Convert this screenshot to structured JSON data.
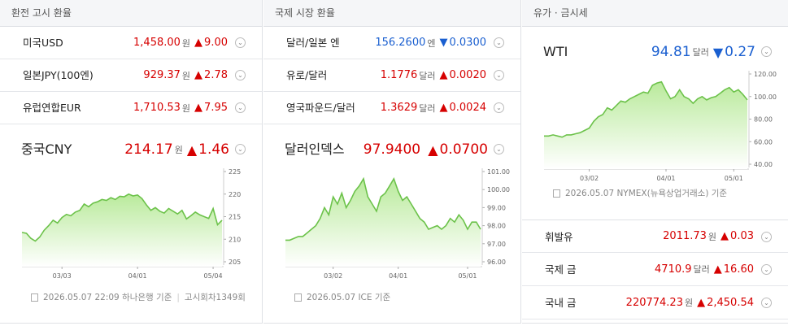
{
  "sections": [
    {
      "title": "환전 고시 환율",
      "rows": [
        {
          "name": "미국USD",
          "value": "1,458.00",
          "unit": "원",
          "arrow": "▲",
          "change": "9.00",
          "color": "#d60000"
        },
        {
          "name": "일본JPY(100엔)",
          "value": "929.37",
          "unit": "원",
          "arrow": "▲",
          "change": "2.78",
          "color": "#d60000"
        },
        {
          "name": "유럽연합EUR",
          "value": "1,710.53",
          "unit": "원",
          "arrow": "▲",
          "change": "7.95",
          "color": "#d60000"
        }
      ],
      "featured": {
        "name": "중국CNY",
        "value": "214.17",
        "unit": "원",
        "arrow": "▲",
        "change": "1.46",
        "color": "#d60000",
        "source": "2026.05.07 22:09 하나은행 기준",
        "extra": "고시회차1349회",
        "chart": {
          "type": "line",
          "line_color": "#6cc24a",
          "values": [
            211.5,
            211.3,
            210.2,
            209.6,
            210.5,
            212,
            213,
            214.2,
            213.6,
            214.8,
            215.5,
            215.2,
            216,
            216.4,
            217.8,
            217.2,
            218,
            218.3,
            218.8,
            218.6,
            219.2,
            218.8,
            219.5,
            219.4,
            220,
            219.6,
            219.8,
            219,
            217.6,
            216.4,
            217,
            216.2,
            215.8,
            216.8,
            216.2,
            215.6,
            216.4,
            214.5,
            215.2,
            216,
            215.4,
            215,
            214.6,
            216.8,
            213.2,
            214.2
          ],
          "categories": [
            null,
            null,
            null,
            null,
            null,
            null,
            null,
            null,
            null,
            "03/03",
            null,
            null,
            null,
            null,
            null,
            null,
            null,
            null,
            null,
            null,
            null,
            null,
            null,
            null,
            null,
            null,
            "04/01",
            null,
            null,
            null,
            null,
            null,
            null,
            null,
            null,
            null,
            null,
            null,
            null,
            null,
            null,
            null,
            null,
            "05/04",
            null,
            null
          ],
          "ylim": [
            205,
            225
          ],
          "yticks": [
            205,
            210,
            215,
            220,
            225
          ]
        }
      }
    },
    {
      "title": "국제 시장 환율",
      "rows": [
        {
          "name": "달러/일본 엔",
          "value": "156.2600",
          "unit": "엔",
          "arrow": "▼",
          "change": "0.0300",
          "color": "#1a5fd0"
        },
        {
          "name": "유로/달러",
          "value": "1.1776",
          "unit": "달러",
          "arrow": "▲",
          "change": "0.0020",
          "color": "#d60000"
        },
        {
          "name": "영국파운드/달러",
          "value": "1.3629",
          "unit": "달러",
          "arrow": "▲",
          "change": "0.0024",
          "color": "#d60000"
        }
      ],
      "featured": {
        "name": "달러인덱스",
        "value": "97.9400",
        "unit": null,
        "arrow": "▲",
        "change": "0.0700",
        "color": "#d60000",
        "source": "2026.05.07 ICE 기준",
        "extra": null,
        "chart": {
          "type": "line",
          "line_color": "#6cc24a",
          "values": [
            97.2,
            97.2,
            97.3,
            97.4,
            97.4,
            97.6,
            97.8,
            98.0,
            98.4,
            99.0,
            98.6,
            99.6,
            99.2,
            99.8,
            99.0,
            99.4,
            99.9,
            100.2,
            100.6,
            99.6,
            99.2,
            98.8,
            99.6,
            99.8,
            100.2,
            100.6,
            99.9,
            99.4,
            99.6,
            99.2,
            98.8,
            98.4,
            98.2,
            97.8,
            97.9,
            98.0,
            97.8,
            98.0,
            98.4,
            98.2,
            98.6,
            98.3,
            97.8,
            98.2,
            98.2,
            97.8
          ],
          "categories": [
            null,
            null,
            null,
            null,
            null,
            null,
            null,
            null,
            null,
            null,
            null,
            "03/02",
            null,
            null,
            null,
            null,
            null,
            null,
            null,
            null,
            null,
            null,
            null,
            null,
            null,
            null,
            "04/01",
            null,
            null,
            null,
            null,
            null,
            null,
            null,
            null,
            null,
            null,
            null,
            null,
            null,
            null,
            null,
            "05/01",
            null,
            null,
            null
          ],
          "ylim": [
            96,
            101
          ],
          "yticks": [
            {
              "value": 96,
              "label": "96.00"
            },
            {
              "value": 97,
              "label": "97.00"
            },
            {
              "value": 98,
              "label": "98.00"
            },
            {
              "value": 99,
              "label": "99.00"
            },
            {
              "value": 100,
              "label": "100.00"
            },
            {
              "value": 101,
              "label": "101.00"
            }
          ]
        }
      }
    },
    {
      "title": "유가 · 금시세",
      "rows": [
        {
          "name": "휘발유",
          "value": "2011.73",
          "unit": "원",
          "arrow": "▲",
          "change": "0.03",
          "color": "#d60000"
        },
        {
          "name": "국제 금",
          "value": "4710.9",
          "unit": "달러",
          "arrow": "▲",
          "change": "16.60",
          "color": "#d60000"
        },
        {
          "name": "국내 금",
          "value": "220774.23",
          "unit": "원",
          "arrow": "▲",
          "change": "2,450.54",
          "color": "#d60000"
        }
      ],
      "featured": {
        "name": "WTI",
        "value": "94.81",
        "unit": "달러",
        "arrow": "▼",
        "change": "0.27",
        "color": "#1a5fd0",
        "source": "2026.05.07 NYMEX(뉴욕상업거래소) 기준",
        "extra": null,
        "chart": {
          "type": "line",
          "line_color": "#6cc24a",
          "values": [
            65,
            65,
            66,
            65,
            64,
            66,
            66,
            67,
            68,
            70,
            72,
            78,
            82,
            84,
            90,
            88,
            92,
            96,
            95,
            98,
            100,
            102,
            104,
            103,
            110,
            112,
            113,
            105,
            98,
            100,
            106,
            100,
            98,
            94,
            98,
            100,
            97,
            99,
            100,
            103,
            106,
            108,
            104,
            106,
            102,
            97
          ],
          "categories": [
            null,
            null,
            null,
            null,
            null,
            null,
            null,
            null,
            null,
            null,
            "03/02",
            null,
            null,
            null,
            null,
            null,
            null,
            null,
            null,
            null,
            null,
            null,
            null,
            null,
            null,
            null,
            null,
            "04/01",
            null,
            null,
            null,
            null,
            null,
            null,
            null,
            null,
            null,
            null,
            null,
            null,
            null,
            null,
            "05/01",
            null,
            null,
            null
          ],
          "ylim": [
            40,
            120
          ],
          "yticks": [
            {
              "value": 40,
              "label": "40.00"
            },
            {
              "value": 60,
              "label": "60.00"
            },
            {
              "value": 80,
              "label": "80.00"
            },
            {
              "value": 100,
              "label": "100.00"
            },
            {
              "value": 120,
              "label": "120.00"
            }
          ]
        }
      }
    }
  ]
}
